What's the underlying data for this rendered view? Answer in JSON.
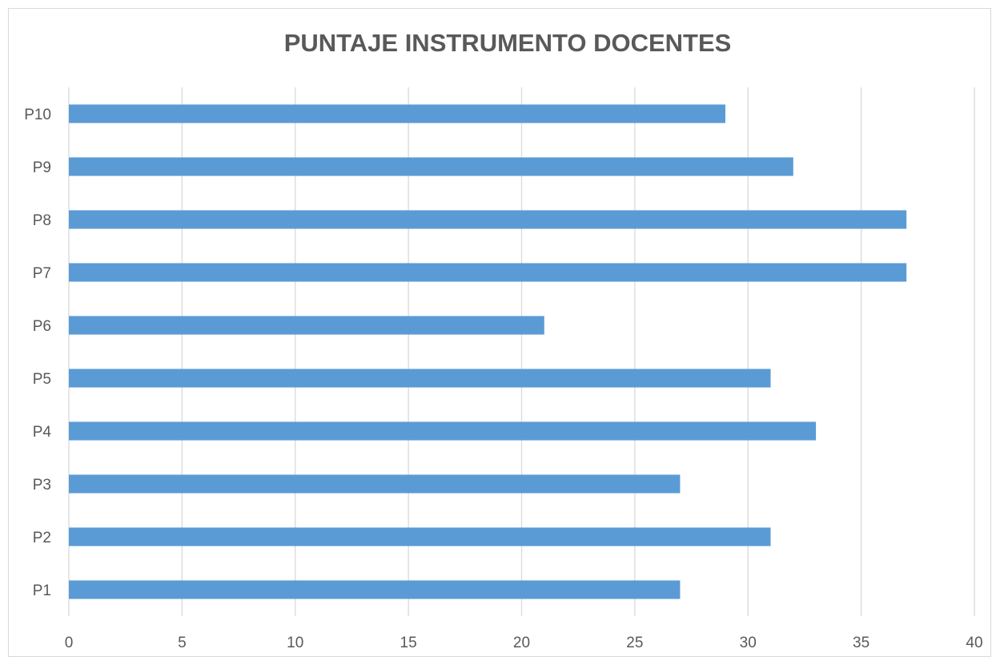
{
  "chart_data": {
    "type": "bar",
    "orientation": "horizontal",
    "title": "PUNTAJE INSTRUMENTO DOCENTES",
    "xlabel": "",
    "ylabel": "",
    "categories": [
      "P1",
      "P2",
      "P3",
      "P4",
      "P5",
      "P6",
      "P7",
      "P8",
      "P9",
      "P10"
    ],
    "values": [
      27,
      31,
      27,
      33,
      31,
      21,
      37,
      37,
      32,
      29
    ],
    "xlim": [
      0,
      40
    ],
    "xticks": [
      "0",
      "5",
      "10",
      "15",
      "20",
      "25",
      "30",
      "35",
      "40"
    ],
    "grid": true,
    "legend": "none",
    "bar_color": "#5b9bd5",
    "grid_color": "#d9d9d9"
  }
}
